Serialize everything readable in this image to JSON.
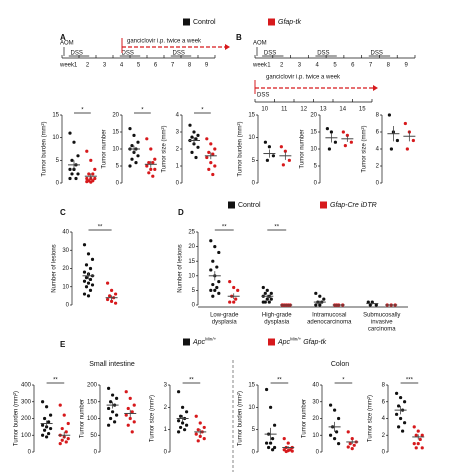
{
  "legend_top": [
    {
      "label": "Control",
      "color": "#111111",
      "italic": false
    },
    {
      "label": "Gfap-tk",
      "color": "#d7191c",
      "italic": true
    }
  ],
  "timeline_A": {
    "label": "A",
    "aom": "AOM",
    "week_label": "week",
    "weeks": [
      1,
      2,
      3,
      4,
      5,
      6,
      7,
      8,
      9
    ],
    "dss": [
      "DSS",
      "DSS",
      "DSS"
    ],
    "drug": "ganciclovir i.p. twice a week"
  },
  "timeline_B": {
    "label": "B",
    "aom": "AOM",
    "week_label": "week",
    "weeks": [
      1,
      2,
      3,
      4,
      5,
      6,
      7,
      8,
      9
    ],
    "dss": [
      "DSS",
      "DSS",
      "DSS"
    ],
    "drug": "ganciclovir i.p. twice a week",
    "weeks2": [
      10,
      11,
      12,
      13,
      14,
      15
    ],
    "dss2": "DSS"
  },
  "panels": {
    "C": "C",
    "D": "D",
    "E": "E"
  },
  "legend_D": [
    {
      "label": "Control",
      "color": "#111111",
      "italic": false
    },
    {
      "label": "Gfap-Cre iDTR",
      "color": "#d7191c",
      "italic": true
    }
  ],
  "legend_E": [
    {
      "label": "Apc",
      "sup": "Min/+",
      "color": "#111111"
    },
    {
      "label": "Apc",
      "sup": "Min/+",
      "suffix": "Gfap-tk",
      "color": "#d7191c"
    }
  ],
  "headings": {
    "small_intestine": "Small intestine",
    "colon": "Colon"
  },
  "chart_data": [
    {
      "type": "dot",
      "ylabel": "Tumor burden (mm²)",
      "ylim": [
        0,
        15
      ],
      "yticks": [
        0,
        5,
        10,
        15
      ],
      "sig": "*",
      "groups": [
        {
          "color": "#111111",
          "values": [
            11,
            9,
            6,
            5,
            4,
            3,
            3,
            2,
            2,
            1,
            1,
            3
          ],
          "mean": 4,
          "sem": 1
        },
        {
          "color": "#d7191c",
          "values": [
            7,
            5,
            3,
            2,
            2,
            1,
            1,
            1,
            0.5,
            0.5,
            0.3,
            0.2
          ],
          "mean": 1.5,
          "sem": 0.6
        }
      ]
    },
    {
      "type": "dot",
      "ylabel": "Tumor number",
      "ylim": [
        0,
        20
      ],
      "yticks": [
        0,
        5,
        10,
        15,
        20
      ],
      "sig": "*",
      "groups": [
        {
          "color": "#111111",
          "values": [
            16,
            14,
            12,
            11,
            10,
            10,
            9,
            8,
            7,
            6,
            5
          ],
          "mean": 10,
          "sem": 1
        },
        {
          "color": "#d7191c",
          "values": [
            13,
            10,
            7,
            6,
            6,
            5,
            4,
            4,
            3,
            2
          ],
          "mean": 5.5,
          "sem": 1
        }
      ]
    },
    {
      "type": "dot",
      "ylabel": "Tumor size (mm²)",
      "ylim": [
        0,
        4
      ],
      "yticks": [
        0,
        1,
        2,
        3,
        4
      ],
      "sig": "*",
      "groups": [
        {
          "color": "#111111",
          "values": [
            3.4,
            3.0,
            2.8,
            2.7,
            2.6,
            2.5,
            2.3,
            2.1,
            1.8,
            1.5
          ],
          "mean": 2.5,
          "sem": 0.2
        },
        {
          "color": "#d7191c",
          "values": [
            2.6,
            2.3,
            2.0,
            1.8,
            1.7,
            1.5,
            1.2,
            1.0,
            0.8,
            0.5
          ],
          "mean": 1.6,
          "sem": 0.2
        }
      ]
    },
    {
      "type": "dot",
      "ylabel": "Tumor burden (mm²)",
      "ylim": [
        0,
        15
      ],
      "yticks": [
        0,
        5,
        10,
        15
      ],
      "sig": null,
      "groups": [
        {
          "color": "#111111",
          "values": [
            9,
            8,
            6,
            5
          ],
          "mean": 6.5,
          "sem": 0.9
        },
        {
          "color": "#d7191c",
          "values": [
            8,
            7,
            5,
            4
          ],
          "mean": 6,
          "sem": 0.9
        }
      ]
    },
    {
      "type": "dot",
      "ylabel": "Tumor number",
      "ylim": [
        0,
        20
      ],
      "yticks": [
        0,
        5,
        10,
        15,
        20
      ],
      "sig": null,
      "groups": [
        {
          "color": "#111111",
          "values": [
            16,
            15,
            12,
            10
          ],
          "mean": 13.3,
          "sem": 1.4
        },
        {
          "color": "#d7191c",
          "values": [
            15,
            14,
            12,
            11
          ],
          "mean": 13,
          "sem": 0.9
        }
      ]
    },
    {
      "type": "dot",
      "ylabel": "Tumor size (mm²)",
      "ylim": [
        0,
        8
      ],
      "yticks": [
        0,
        2,
        4,
        6,
        8
      ],
      "sig": null,
      "groups": [
        {
          "color": "#111111",
          "values": [
            8,
            6,
            5,
            4
          ],
          "mean": 5.8,
          "sem": 0.9
        },
        {
          "color": "#d7191c",
          "values": [
            7,
            6,
            5,
            4
          ],
          "mean": 5.5,
          "sem": 0.6
        }
      ]
    },
    {
      "type": "dot",
      "ylabel": "Number of lesions",
      "ylim": [
        0,
        40
      ],
      "yticks": [
        0,
        10,
        20,
        30,
        40
      ],
      "sig": "**",
      "groups": [
        {
          "color": "#111111",
          "values": [
            33,
            28,
            25,
            22,
            20,
            18,
            17,
            16,
            15,
            14,
            13,
            12,
            11,
            10,
            8,
            6,
            5
          ],
          "mean": 16,
          "sem": 2
        },
        {
          "color": "#d7191c",
          "values": [
            12,
            8,
            6,
            5,
            4,
            3,
            2,
            1
          ],
          "mean": 4,
          "sem": 1.3
        }
      ]
    },
    {
      "type": "dot_grouped",
      "ylabel": "Number of lesions",
      "ylim": [
        0,
        25
      ],
      "yticks": [
        0,
        5,
        10,
        15,
        20,
        25
      ],
      "categories": [
        [
          "Low-grade",
          "dysplasia"
        ],
        [
          "High-grade",
          "dysplasia"
        ],
        [
          "Intramucosal",
          "adenocarcinoma"
        ],
        [
          "Submucosally",
          "invasive",
          "carcinoma"
        ]
      ],
      "sig": [
        "**",
        "**",
        null,
        null
      ],
      "series": [
        {
          "color": "#111111",
          "values": [
            [
              22,
              20,
              18,
              15,
              13,
              12,
              10,
              8,
              7,
              6,
              5,
              5,
              4,
              3
            ],
            [
              6,
              5,
              4,
              4,
              3,
              3,
              2,
              2,
              1,
              1,
              1
            ],
            [
              4,
              3,
              2,
              1,
              1,
              0,
              0
            ],
            [
              1,
              1,
              0,
              0
            ]
          ],
          "mean": [
            10,
            3,
            1,
            0.5
          ],
          "sem": [
            1.6,
            0.5,
            0.5,
            0.3
          ]
        },
        {
          "color": "#d7191c",
          "values": [
            [
              8,
              6,
              5,
              3,
              2,
              1,
              1
            ],
            [
              0,
              0,
              0,
              0,
              0,
              0
            ],
            [
              0,
              0,
              0,
              0
            ],
            [
              0,
              0,
              0
            ]
          ],
          "mean": [
            3,
            0,
            0,
            0
          ],
          "sem": [
            1,
            0,
            0,
            0
          ]
        }
      ]
    },
    {
      "type": "dot",
      "ylabel": "Tumor burden (mm²)",
      "ylim": [
        0,
        400
      ],
      "yticks": [
        0,
        100,
        200,
        300,
        400
      ],
      "sig": "**",
      "groups": [
        {
          "color": "#111111",
          "values": [
            300,
            270,
            220,
            200,
            180,
            160,
            150,
            140,
            130,
            110,
            100,
            90
          ],
          "mean": 170,
          "sem": 18
        },
        {
          "color": "#d7191c",
          "values": [
            280,
            220,
            170,
            140,
            120,
            100,
            90,
            80,
            70,
            60,
            50
          ],
          "mean": 100,
          "sem": 20
        }
      ]
    },
    {
      "type": "dot",
      "ylabel": "Tumor number",
      "ylim": [
        0,
        200
      ],
      "yticks": [
        0,
        50,
        100,
        150,
        200
      ],
      "sig": null,
      "groups": [
        {
          "color": "#111111",
          "values": [
            190,
            170,
            160,
            150,
            140,
            130,
            120,
            110,
            100,
            90,
            80
          ],
          "mean": 140,
          "sem": 10
        },
        {
          "color": "#d7191c",
          "values": [
            180,
            160,
            140,
            130,
            120,
            110,
            100,
            90,
            80,
            60
          ],
          "mean": 115,
          "sem": 11
        }
      ]
    },
    {
      "type": "dot",
      "ylabel": "Tumor size (mm²)",
      "ylim": [
        0,
        3
      ],
      "yticks": [
        0,
        1,
        2,
        3
      ],
      "sig": "**",
      "groups": [
        {
          "color": "#111111",
          "values": [
            2.7,
            2.0,
            1.8,
            1.6,
            1.5,
            1.4,
            1.3,
            1.2,
            1.1,
            1.0,
            0.9
          ],
          "mean": 1.5,
          "sem": 0.15
        },
        {
          "color": "#d7191c",
          "values": [
            1.6,
            1.3,
            1.1,
            1.0,
            0.9,
            0.8,
            0.7,
            0.6,
            0.5
          ],
          "mean": 0.9,
          "sem": 0.12
        }
      ]
    },
    {
      "type": "dot",
      "ylabel": "Tumor burden (mm²)",
      "ylim": [
        0,
        15
      ],
      "yticks": [
        0,
        5,
        10,
        15
      ],
      "sig": "**",
      "groups": [
        {
          "color": "#111111",
          "values": [
            14,
            10,
            6,
            4,
            3,
            2,
            2,
            1,
            1,
            0.5
          ],
          "mean": 4,
          "sem": 1.4
        },
        {
          "color": "#d7191c",
          "values": [
            3,
            2,
            1,
            1,
            0.5,
            0.5,
            0.3,
            0.2,
            0.1
          ],
          "mean": 1,
          "sem": 0.3
        }
      ]
    },
    {
      "type": "dot",
      "ylabel": "Tumor number",
      "ylim": [
        0,
        40
      ],
      "yticks": [
        0,
        10,
        20,
        30,
        40
      ],
      "sig": "*",
      "groups": [
        {
          "color": "#111111",
          "values": [
            28,
            25,
            20,
            15,
            12,
            10,
            8,
            5
          ],
          "mean": 15,
          "sem": 3
        },
        {
          "color": "#d7191c",
          "values": [
            12,
            8,
            6,
            5,
            4,
            3,
            2
          ],
          "mean": 6,
          "sem": 1.3
        }
      ]
    },
    {
      "type": "dot",
      "ylabel": "Tumor size (mm²)",
      "ylim": [
        0,
        8
      ],
      "yticks": [
        0,
        2,
        4,
        6,
        8
      ],
      "sig": "***",
      "groups": [
        {
          "color": "#111111",
          "values": [
            7,
            6.5,
            6,
            5.5,
            5,
            4.5,
            4,
            3.5,
            3,
            2.5
          ],
          "mean": 5,
          "sem": 0.5
        },
        {
          "color": "#d7191c",
          "values": [
            3,
            2.5,
            2,
            2,
            1.5,
            1,
            1,
            0.5,
            0.5
          ],
          "mean": 1.8,
          "sem": 0.3
        }
      ]
    }
  ]
}
